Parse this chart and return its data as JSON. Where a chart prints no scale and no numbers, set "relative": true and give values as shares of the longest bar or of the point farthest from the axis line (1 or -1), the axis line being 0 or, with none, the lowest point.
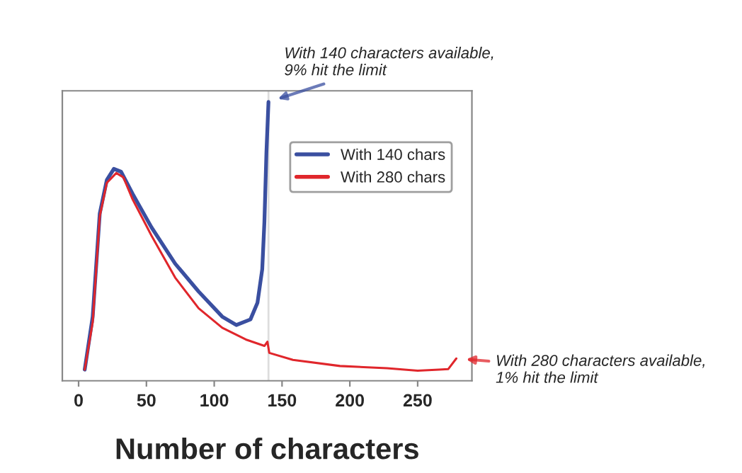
{
  "chart_data": {
    "type": "line",
    "relative": true,
    "xlabel": "Number of characters",
    "xlim": [
      -12,
      290
    ],
    "xticks": [
      0,
      50,
      100,
      150,
      200,
      250
    ],
    "tick_labels": "x",
    "grid": false,
    "legend": "top right",
    "line_style": "solid",
    "series": [
      {
        "name": "With 140 chars",
        "color": "#3a4fa0",
        "x": [
          4.5,
          10.4,
          15.6,
          20.8,
          26,
          31.3,
          39.9,
          53.8,
          71.2,
          88.5,
          105.9,
          116.3,
          126.7,
          131.9,
          135.4,
          137,
          138.5,
          140
        ],
        "values": [
          0.04,
          0.23,
          0.6,
          0.72,
          0.76,
          0.75,
          0.67,
          0.55,
          0.42,
          0.32,
          0.23,
          0.2,
          0.22,
          0.28,
          0.4,
          0.57,
          0.82,
          1.0
        ]
      },
      {
        "name": "With 280 chars",
        "color": "#e0262b",
        "x": [
          4.5,
          10.4,
          15.6,
          20.8,
          27.8,
          33,
          39.9,
          53.8,
          71.2,
          88.5,
          105.9,
          123.3,
          137,
          139.2,
          140.6,
          158,
          192.7,
          227.4,
          250,
          265.7,
          272.6,
          278.5
        ],
        "values": [
          0.04,
          0.21,
          0.59,
          0.71,
          0.745,
          0.73,
          0.65,
          0.52,
          0.37,
          0.26,
          0.19,
          0.148,
          0.125,
          0.14,
          0.1,
          0.075,
          0.053,
          0.045,
          0.036,
          0.04,
          0.042,
          0.08
        ]
      }
    ],
    "ref_lines": [
      {
        "axis": "x",
        "value": 140,
        "color": "#dddddd"
      }
    ],
    "annotations": [
      {
        "text": "With 140 characters available,\n9% hit the limit",
        "x": 140,
        "y": 1.0
      },
      {
        "text": "With 280 characters available,\n1% hit the limit",
        "x": 278.5,
        "y": 0.08
      }
    ]
  }
}
